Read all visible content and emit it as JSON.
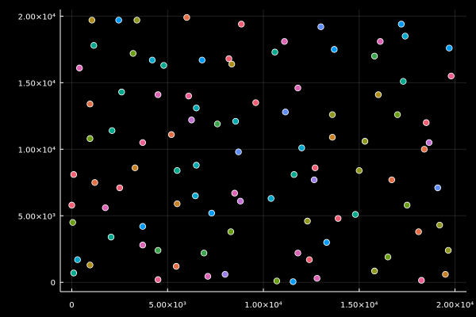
{
  "chart_data": {
    "type": "scatter",
    "title": "",
    "xlabel": "",
    "ylabel": "",
    "xlim": [
      -600,
      20600
    ],
    "ylim": [
      -700,
      20500
    ],
    "grid": true,
    "legend": "none",
    "background": "#000000",
    "axis_color": "#ffffff",
    "palette": [
      "#009af9",
      "#e26f46",
      "#3da44d",
      "#c271d2",
      "#ac8e18",
      "#00a9ad",
      "#ed5e93",
      "#c68225",
      "#00a98d",
      "#8e971e",
      "#00a8cb",
      "#9b7fe9",
      "#618df6",
      "#f05f73",
      "#dd64b5",
      "#6b9d15"
    ],
    "x_ticks": [
      {
        "value": 0,
        "label": "0"
      },
      {
        "value": 5000,
        "label": "5.00×10³"
      },
      {
        "value": 10000,
        "label": "1.00×10⁴"
      },
      {
        "value": 15000,
        "label": "1.50×10⁴"
      },
      {
        "value": 20000,
        "label": "2.00×10⁴"
      }
    ],
    "y_ticks": [
      {
        "value": 0,
        "label": "0"
      },
      {
        "value": 5000,
        "label": "5.00×10³"
      },
      {
        "value": 10000,
        "label": "1.00×10⁴"
      },
      {
        "value": 15000,
        "label": "1.50×10⁴"
      },
      {
        "value": 20000,
        "label": "2.00×10⁴"
      }
    ],
    "points": [
      {
        "x": 1050,
        "y": 19700,
        "color": "#ac8e18"
      },
      {
        "x": 2450,
        "y": 19700,
        "color": "#009af9"
      },
      {
        "x": 3400,
        "y": 19700,
        "color": "#8e971e"
      },
      {
        "x": 6000,
        "y": 19900,
        "color": "#e26f46"
      },
      {
        "x": 8850,
        "y": 19400,
        "color": "#f05f73"
      },
      {
        "x": 13000,
        "y": 19200,
        "color": "#618df6"
      },
      {
        "x": 17200,
        "y": 19400,
        "color": "#009af9"
      },
      {
        "x": 1150,
        "y": 17800,
        "color": "#00a98d"
      },
      {
        "x": 3200,
        "y": 17200,
        "color": "#6b9d15"
      },
      {
        "x": 4200,
        "y": 16700,
        "color": "#00a8cb"
      },
      {
        "x": 4800,
        "y": 16300,
        "color": "#00a98d"
      },
      {
        "x": 6800,
        "y": 16700,
        "color": "#009af9"
      },
      {
        "x": 8200,
        "y": 16800,
        "color": "#f05f73"
      },
      {
        "x": 8350,
        "y": 16400,
        "color": "#ac8e18"
      },
      {
        "x": 11100,
        "y": 18100,
        "color": "#dd64b5"
      },
      {
        "x": 10600,
        "y": 17300,
        "color": "#00a98d"
      },
      {
        "x": 13700,
        "y": 17500,
        "color": "#009af9"
      },
      {
        "x": 15800,
        "y": 17000,
        "color": "#3da44d"
      },
      {
        "x": 16100,
        "y": 18100,
        "color": "#dd64b5"
      },
      {
        "x": 17400,
        "y": 18500,
        "color": "#00a8cb"
      },
      {
        "x": 19700,
        "y": 17600,
        "color": "#009af9"
      },
      {
        "x": 400,
        "y": 16100,
        "color": "#dd64b5"
      },
      {
        "x": 2600,
        "y": 14300,
        "color": "#00a98d"
      },
      {
        "x": 4500,
        "y": 14100,
        "color": "#dd64b5"
      },
      {
        "x": 6100,
        "y": 14000,
        "color": "#ed5e93"
      },
      {
        "x": 9600,
        "y": 13500,
        "color": "#f05f73"
      },
      {
        "x": 11800,
        "y": 14600,
        "color": "#dd64b5"
      },
      {
        "x": 16000,
        "y": 14100,
        "color": "#ac8e18"
      },
      {
        "x": 17300,
        "y": 15100,
        "color": "#00a98d"
      },
      {
        "x": 19800,
        "y": 15500,
        "color": "#ed5e93"
      },
      {
        "x": 950,
        "y": 13400,
        "color": "#e26f46"
      },
      {
        "x": 6500,
        "y": 13100,
        "color": "#00a9ad"
      },
      {
        "x": 6250,
        "y": 12200,
        "color": "#c271d2"
      },
      {
        "x": 7600,
        "y": 11900,
        "color": "#3da44d"
      },
      {
        "x": 8550,
        "y": 12100,
        "color": "#00a9ad"
      },
      {
        "x": 11150,
        "y": 12800,
        "color": "#618df6"
      },
      {
        "x": 13600,
        "y": 12600,
        "color": "#8e971e"
      },
      {
        "x": 17000,
        "y": 12600,
        "color": "#6b9d15"
      },
      {
        "x": 18500,
        "y": 12000,
        "color": "#f05f73"
      },
      {
        "x": 950,
        "y": 10800,
        "color": "#6b9d15"
      },
      {
        "x": 2100,
        "y": 11400,
        "color": "#00a98d"
      },
      {
        "x": 3700,
        "y": 10500,
        "color": "#ed5e93"
      },
      {
        "x": 5200,
        "y": 11100,
        "color": "#e26f46"
      },
      {
        "x": 8700,
        "y": 9800,
        "color": "#618df6"
      },
      {
        "x": 12000,
        "y": 10100,
        "color": "#00a8cb"
      },
      {
        "x": 13600,
        "y": 10900,
        "color": "#c68225"
      },
      {
        "x": 15300,
        "y": 10600,
        "color": "#8e971e"
      },
      {
        "x": 18400,
        "y": 10000,
        "color": "#e26f46"
      },
      {
        "x": 18650,
        "y": 10500,
        "color": "#c271d2"
      },
      {
        "x": 100,
        "y": 8100,
        "color": "#f05f73"
      },
      {
        "x": 1200,
        "y": 7500,
        "color": "#e26f46"
      },
      {
        "x": 2500,
        "y": 7100,
        "color": "#f05f73"
      },
      {
        "x": 3300,
        "y": 8600,
        "color": "#c68225"
      },
      {
        "x": 5500,
        "y": 8400,
        "color": "#00a98d"
      },
      {
        "x": 6500,
        "y": 8800,
        "color": "#00a9ad"
      },
      {
        "x": 11600,
        "y": 8100,
        "color": "#00a98d"
      },
      {
        "x": 12700,
        "y": 8600,
        "color": "#f05f73"
      },
      {
        "x": 12650,
        "y": 7700,
        "color": "#9b7fe9"
      },
      {
        "x": 15000,
        "y": 8400,
        "color": "#8e971e"
      },
      {
        "x": 16700,
        "y": 7700,
        "color": "#e26f46"
      },
      {
        "x": 19100,
        "y": 7100,
        "color": "#618df6"
      },
      {
        "x": 0,
        "y": 5800,
        "color": "#f05f73"
      },
      {
        "x": 1750,
        "y": 5600,
        "color": "#dd64b5"
      },
      {
        "x": 5500,
        "y": 5900,
        "color": "#c68225"
      },
      {
        "x": 6450,
        "y": 6500,
        "color": "#00a8cb"
      },
      {
        "x": 7300,
        "y": 5200,
        "color": "#009af9"
      },
      {
        "x": 8500,
        "y": 6700,
        "color": "#dd64b5"
      },
      {
        "x": 8800,
        "y": 6100,
        "color": "#c271d2"
      },
      {
        "x": 10400,
        "y": 6300,
        "color": "#00a8cb"
      },
      {
        "x": 12300,
        "y": 4600,
        "color": "#8e971e"
      },
      {
        "x": 13900,
        "y": 4800,
        "color": "#f05f73"
      },
      {
        "x": 14800,
        "y": 5100,
        "color": "#00a98d"
      },
      {
        "x": 17500,
        "y": 5800,
        "color": "#6b9d15"
      },
      {
        "x": 50,
        "y": 4500,
        "color": "#6b9d15"
      },
      {
        "x": 2050,
        "y": 3400,
        "color": "#00a98d"
      },
      {
        "x": 3700,
        "y": 4200,
        "color": "#009af9"
      },
      {
        "x": 3700,
        "y": 2800,
        "color": "#dd64b5"
      },
      {
        "x": 4500,
        "y": 2400,
        "color": "#3da44d"
      },
      {
        "x": 8300,
        "y": 3800,
        "color": "#6b9d15"
      },
      {
        "x": 13300,
        "y": 3000,
        "color": "#009af9"
      },
      {
        "x": 18100,
        "y": 3800,
        "color": "#e26f46"
      },
      {
        "x": 19200,
        "y": 4300,
        "color": "#8e971e"
      },
      {
        "x": 19650,
        "y": 2400,
        "color": "#8e971e"
      },
      {
        "x": 300,
        "y": 1700,
        "color": "#00a8cb"
      },
      {
        "x": 100,
        "y": 700,
        "color": "#00a98d"
      },
      {
        "x": 950,
        "y": 1300,
        "color": "#ac8e18"
      },
      {
        "x": 4500,
        "y": 200,
        "color": "#ed5e93"
      },
      {
        "x": 5450,
        "y": 1200,
        "color": "#e26f46"
      },
      {
        "x": 6900,
        "y": 2200,
        "color": "#3da44d"
      },
      {
        "x": 7100,
        "y": 450,
        "color": "#dd64b5"
      },
      {
        "x": 8000,
        "y": 600,
        "color": "#9b7fe9"
      },
      {
        "x": 11800,
        "y": 2200,
        "color": "#dd64b5"
      },
      {
        "x": 12400,
        "y": 1700,
        "color": "#f05f73"
      },
      {
        "x": 12800,
        "y": 300,
        "color": "#dd64b5"
      },
      {
        "x": 15800,
        "y": 850,
        "color": "#8e971e"
      },
      {
        "x": 16500,
        "y": 1900,
        "color": "#6b9d15"
      },
      {
        "x": 10700,
        "y": 100,
        "color": "#6b9d15"
      },
      {
        "x": 11550,
        "y": 50,
        "color": "#009af9"
      },
      {
        "x": 18250,
        "y": 150,
        "color": "#ed5e93"
      },
      {
        "x": 19500,
        "y": 600,
        "color": "#c68225"
      }
    ]
  }
}
